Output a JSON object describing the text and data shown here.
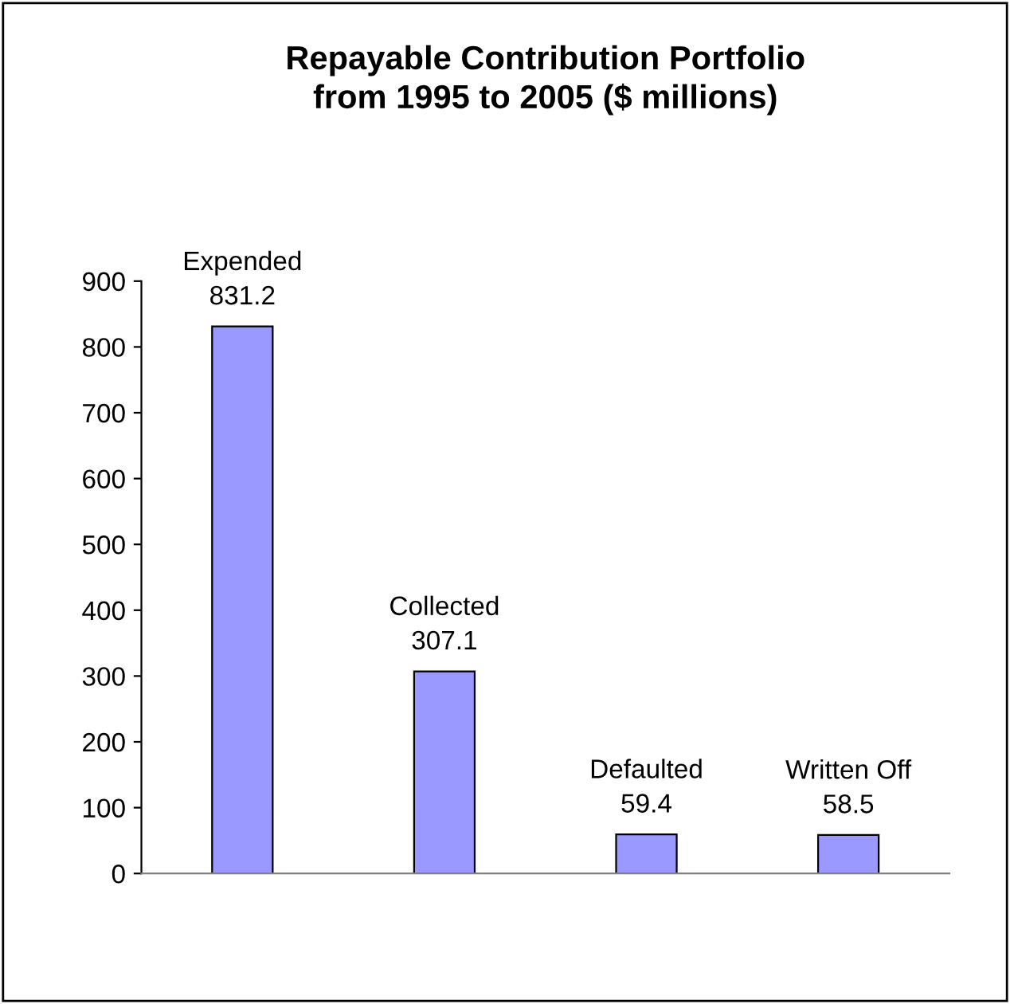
{
  "chart_data": {
    "type": "bar",
    "title": "Repayable Contribution Portfolio\nfrom 1995 to 2005 ($ millions)",
    "categories": [
      "Expended",
      "Collected",
      "Defaulted",
      "Written Off"
    ],
    "values": [
      831.2,
      307.1,
      59.4,
      58.5
    ],
    "color": "#9999ff",
    "ylim": [
      0,
      900
    ],
    "yticks": [
      0,
      100,
      200,
      300,
      400,
      500,
      600,
      700,
      800,
      900
    ],
    "grid": false,
    "data_labels": true
  }
}
